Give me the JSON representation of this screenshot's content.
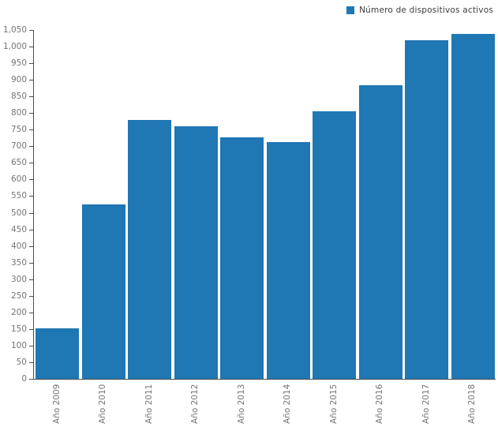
{
  "legend": {
    "label": "Número de dispositivos activos"
  },
  "chart_data": {
    "type": "bar",
    "title": "Número de dispositivos activos",
    "categories": [
      "Año 2009",
      "Año 2010",
      "Año 2011",
      "Año 2012",
      "Año 2013",
      "Año 2014",
      "Año 2015",
      "Año 2016",
      "Año 2017",
      "Año 2018"
    ],
    "values": [
      152,
      526,
      780,
      760,
      726,
      712,
      806,
      883,
      1019,
      1037
    ],
    "series_name": "Número de dispositivos activos",
    "xlabel": "",
    "ylabel": "",
    "ylim": [
      0,
      1050
    ],
    "ytick_step": 50,
    "ytick_labels": [
      "0",
      "50",
      "100",
      "150",
      "200",
      "250",
      "300",
      "350",
      "400",
      "450",
      "500",
      "550",
      "600",
      "650",
      "700",
      "750",
      "800",
      "850",
      "900",
      "950",
      "1,000",
      "1,050"
    ],
    "grid": false,
    "legend_position": "top-right",
    "bar_color": "#1f77b4",
    "axis_color": "#4d4d4d",
    "tick_label_color": "#757575",
    "legend_text_color": "#3c3c3c",
    "background_color": "#ffffff"
  }
}
